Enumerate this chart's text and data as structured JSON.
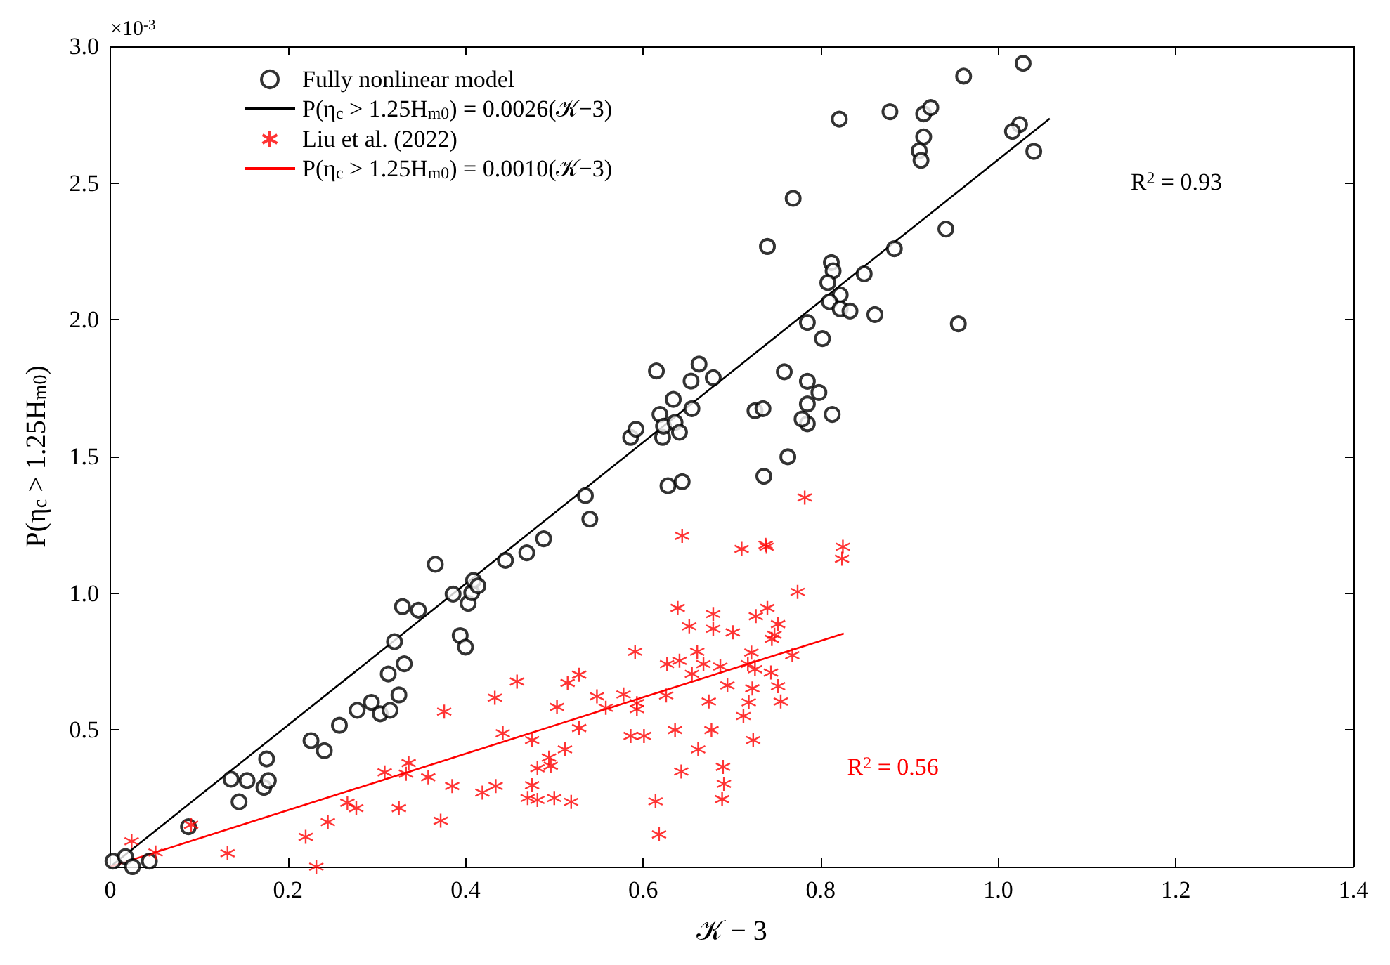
{
  "chart_data": {
    "type": "scatter",
    "xlabel": "𝒦 − 3",
    "ylabel": "P(η$_{c}$ > 1.25H$_{m0}$)",
    "xlim": [
      0,
      1.4
    ],
    "xticks": [
      0,
      0.2,
      0.4,
      0.6,
      0.8,
      {
        "value": 1,
        "label": "1.0"
      },
      1.2,
      1.4
    ],
    "ylim": [
      0,
      3
    ],
    "yticks": [
      0.5,
      {
        "value": 1,
        "label": "1.0"
      },
      1.5,
      {
        "value": 2,
        "label": "2.0"
      },
      2.5,
      {
        "value": 3,
        "label": "3.0"
      }
    ],
    "grid": false,
    "legend": "top left",
    "annotations": [
      "×10$^{-3}$",
      "R$^{2}$ = 0.93",
      "R$^{2}$ = 0.56"
    ],
    "series": [
      {
        "name": "Fully nonlinear model",
        "marker": "circle",
        "color": "#000000",
        "x": [
          0.003,
          0.017,
          0.025,
          0.044,
          0.088,
          0.136,
          0.145,
          0.154,
          0.173,
          0.178,
          0.176,
          0.226,
          0.241,
          0.258,
          0.278,
          0.294,
          0.304,
          0.315,
          0.325,
          0.313,
          0.331,
          0.32,
          0.329,
          0.347,
          0.366,
          0.386,
          0.394,
          0.4,
          0.403,
          0.407,
          0.409,
          0.414,
          0.445,
          0.469,
          0.488,
          0.535,
          0.54,
          0.586,
          0.592,
          0.622,
          0.628,
          0.644,
          0.736,
          0.763,
          1.028,
          0.961,
          0.821,
          0.878,
          0.916,
          0.924,
          0.916,
          0.911,
          0.913,
          1.024,
          1.016,
          1.04,
          0.941,
          0.883,
          0.849,
          0.812,
          0.814,
          0.808,
          0.822,
          0.81,
          0.822,
          0.833,
          0.861,
          0.955,
          0.785,
          0.802,
          0.785,
          0.798,
          0.785,
          0.813,
          0.785,
          0.769,
          0.74,
          0.615,
          0.663,
          0.654,
          0.679,
          0.759,
          0.634,
          0.655,
          0.619,
          0.726,
          0.735,
          0.779,
          0.623,
          0.636,
          0.641
        ],
        "values": [
          0.02,
          0.037,
          0.0,
          0.02,
          0.146,
          0.32,
          0.237,
          0.315,
          0.29,
          0.315,
          0.394,
          0.461,
          0.424,
          0.517,
          0.572,
          0.601,
          0.559,
          0.572,
          0.628,
          0.705,
          0.742,
          0.823,
          0.951,
          0.938,
          1.106,
          0.997,
          0.845,
          0.803,
          0.963,
          1.002,
          1.047,
          1.027,
          1.12,
          1.148,
          1.199,
          1.357,
          1.271,
          1.57,
          1.6,
          1.57,
          1.393,
          1.408,
          1.428,
          1.499,
          2.938,
          2.891,
          2.734,
          2.761,
          2.753,
          2.776,
          2.669,
          2.618,
          2.583,
          2.714,
          2.689,
          2.616,
          2.332,
          2.26,
          2.168,
          2.209,
          2.179,
          2.136,
          2.091,
          2.066,
          2.04,
          2.032,
          2.019,
          1.985,
          1.99,
          1.931,
          1.775,
          1.734,
          1.692,
          1.654,
          1.62,
          2.444,
          2.268,
          1.813,
          1.838,
          1.776,
          1.788,
          1.81,
          1.709,
          1.675,
          1.654,
          1.667,
          1.675,
          1.637,
          1.611,
          1.625,
          1.589
        ]
      },
      {
        "name": "P(η$_{c}$ > 1.25H$_{m0}$) = 0.0026(𝒦−3)",
        "type": "line",
        "marker": "none",
        "line_style": "solid",
        "color": "#000000",
        "x": [
          0,
          1.058
        ],
        "values": [
          0,
          2.736
        ]
      },
      {
        "name": "Liu et al. (2022)",
        "marker": "cross",
        "color": "#ff0000",
        "x": [
          0.024,
          0.051,
          0.091,
          0.132,
          0.22,
          0.232,
          0.245,
          0.267,
          0.277,
          0.309,
          0.325,
          0.333,
          0.336,
          0.358,
          0.372,
          0.376,
          0.385,
          0.419,
          0.433,
          0.434,
          0.442,
          0.458,
          0.47,
          0.475,
          0.475,
          0.481,
          0.481,
          0.494,
          0.496,
          0.5,
          0.503,
          0.512,
          0.515,
          0.519,
          0.528,
          0.528,
          0.548,
          0.558,
          0.578,
          0.591,
          0.586,
          0.593,
          0.593,
          0.601,
          0.614,
          0.618,
          0.626,
          0.627,
          0.636,
          0.639,
          0.641,
          0.643,
          0.644,
          0.652,
          0.655,
          0.661,
          0.662,
          0.668,
          0.674,
          0.677,
          0.679,
          0.679,
          0.687,
          0.69,
          0.691,
          0.689,
          0.695,
          0.701,
          0.711,
          0.713,
          0.718,
          0.719,
          0.722,
          0.723,
          0.724,
          0.726,
          0.727,
          0.738,
          0.739,
          0.74,
          0.744,
          0.745,
          0.748,
          0.752,
          0.752,
          0.755,
          0.768,
          0.774,
          0.782,
          0.825,
          0.824
        ],
        "values": [
          0.093,
          0.052,
          0.153,
          0.049,
          0.109,
          0.0,
          0.163,
          0.234,
          0.214,
          0.345,
          0.214,
          0.34,
          0.379,
          0.327,
          0.168,
          0.567,
          0.295,
          0.271,
          0.618,
          0.295,
          0.488,
          0.677,
          0.251,
          0.298,
          0.463,
          0.36,
          0.244,
          0.399,
          0.369,
          0.251,
          0.584,
          0.429,
          0.672,
          0.237,
          0.702,
          0.507,
          0.623,
          0.581,
          0.63,
          0.786,
          0.478,
          0.598,
          0.576,
          0.478,
          0.239,
          0.118,
          0.626,
          0.741,
          0.5,
          0.946,
          0.753,
          0.348,
          1.21,
          0.879,
          0.705,
          0.786,
          0.429,
          0.741,
          0.604,
          0.5,
          0.924,
          0.87,
          0.732,
          0.365,
          0.303,
          0.247,
          0.663,
          0.857,
          1.162,
          0.551,
          0.741,
          0.601,
          0.783,
          0.652,
          0.463,
          0.722,
          0.916,
          1.177,
          1.17,
          0.946,
          0.71,
          0.833,
          0.848,
          0.887,
          0.66,
          0.604,
          0.773,
          1.005,
          1.35,
          1.17,
          1.126
        ]
      },
      {
        "name": "P(η$_{c}$ > 1.25H$_{m0}$) = 0.0010(𝒦−3)",
        "type": "line",
        "marker": "none",
        "line_style": "solid",
        "color": "#ff0000",
        "x": [
          0,
          0.826
        ],
        "values": [
          0,
          0.853
        ]
      }
    ]
  }
}
